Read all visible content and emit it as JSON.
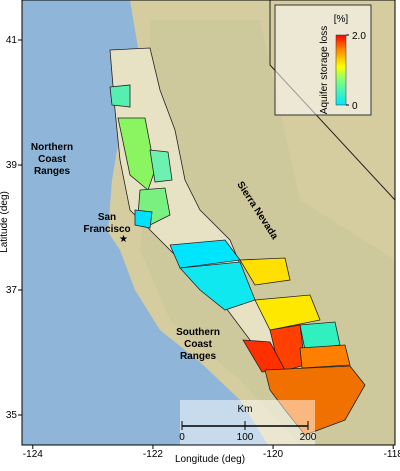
{
  "map": {
    "axes": {
      "x_label": "Longitude (deg)",
      "y_label": "Latitude (deg)",
      "xlim": [
        -124.18,
        -117.97
      ],
      "ylim": [
        34.52,
        41.64
      ],
      "xticks": [
        -124,
        -122,
        -120,
        -118
      ],
      "yticks": [
        35,
        37,
        39,
        41
      ]
    },
    "places": [
      {
        "lines": [
          "Northern",
          "Coast",
          "Ranges"
        ]
      },
      {
        "lines": [
          "San",
          "Francisco"
        ]
      },
      {
        "lines": [
          "Sierra Nevada"
        ]
      },
      {
        "lines": [
          "Southern",
          "Coast",
          "Ranges"
        ]
      }
    ],
    "colorbar": {
      "unit": "[%]",
      "label": "Aquifer storage loss",
      "ticks": [
        {
          "value": 2,
          "label": "2.0"
        },
        0
      ],
      "lim": [
        0,
        2
      ]
    },
    "scale_bar": {
      "unit": "Km",
      "ticks": [
        0,
        100,
        200
      ]
    }
  }
}
